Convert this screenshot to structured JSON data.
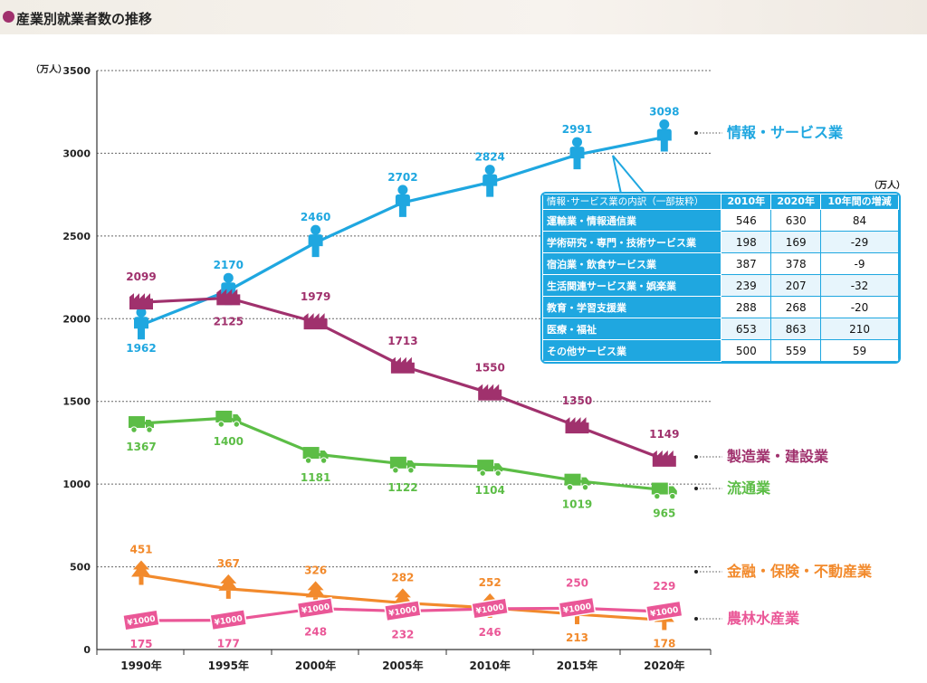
{
  "header": {
    "title": "産業別就業者数の推移"
  },
  "chart_data": {
    "type": "line",
    "unit_label": "（万人）",
    "ylim": [
      0,
      3500
    ],
    "yticks": [
      0,
      500,
      1000,
      1500,
      2000,
      2500,
      3000,
      3500
    ],
    "categories": [
      "1990年",
      "1995年",
      "2000年",
      "2005年",
      "2010年",
      "2015年",
      "2020年"
    ],
    "series": [
      {
        "name": "情報・サービス業",
        "color": "#1fa7e0",
        "icon": "person-icon",
        "values": [
          1962,
          2170,
          2460,
          2702,
          2824,
          2991,
          3098
        ],
        "label_pos": [
          "below",
          "above",
          "above",
          "above",
          "above",
          "above",
          "above"
        ]
      },
      {
        "name": "製造業・建設業",
        "color": "#a0316d",
        "icon": "factory-icon",
        "values": [
          2099,
          2125,
          1979,
          1713,
          1550,
          1350,
          1149
        ],
        "label_pos": [
          "above",
          "below",
          "above",
          "above",
          "above",
          "above",
          "above"
        ]
      },
      {
        "name": "流通業",
        "color": "#5cbd46",
        "icon": "truck-icon",
        "values": [
          1367,
          1400,
          1181,
          1122,
          1104,
          1019,
          965
        ],
        "label_pos": [
          "below",
          "below",
          "below",
          "below",
          "below",
          "below",
          "below"
        ]
      },
      {
        "name": "金融・保険・不動産業",
        "color": "#f28a2c",
        "icon": "tree-icon",
        "values": [
          451,
          367,
          326,
          282,
          252,
          213,
          178
        ],
        "label_pos": [
          "above",
          "above",
          "above",
          "above",
          "above",
          "below",
          "below"
        ]
      },
      {
        "name": "農林水産業",
        "color": "#ea5797",
        "icon": "yen-bill-icon",
        "values": [
          175,
          177,
          248,
          232,
          246,
          250,
          229
        ],
        "label_pos": [
          "below",
          "below",
          "below",
          "below",
          "below",
          "above",
          "above"
        ]
      }
    ],
    "subtable": {
      "unit": "（万人）",
      "header": [
        "情報･サービス業の内訳（一部抜粋）",
        "2010年",
        "2020年",
        "10年間の増減"
      ],
      "rows": [
        [
          "運輸業・情報通信業",
          "546",
          "630",
          "84"
        ],
        [
          "学術研究・専門・技術サービス業",
          "198",
          "169",
          "-29"
        ],
        [
          "宿泊業・飲食サービス業",
          "387",
          "378",
          "-9"
        ],
        [
          "生活関連サービス業・娯楽業",
          "239",
          "207",
          "-32"
        ],
        [
          "教育・学習支援業",
          "288",
          "268",
          "-20"
        ],
        [
          "医療・福祉",
          "653",
          "863",
          "210"
        ],
        [
          "その他サービス業",
          "500",
          "559",
          "59"
        ]
      ]
    }
  }
}
